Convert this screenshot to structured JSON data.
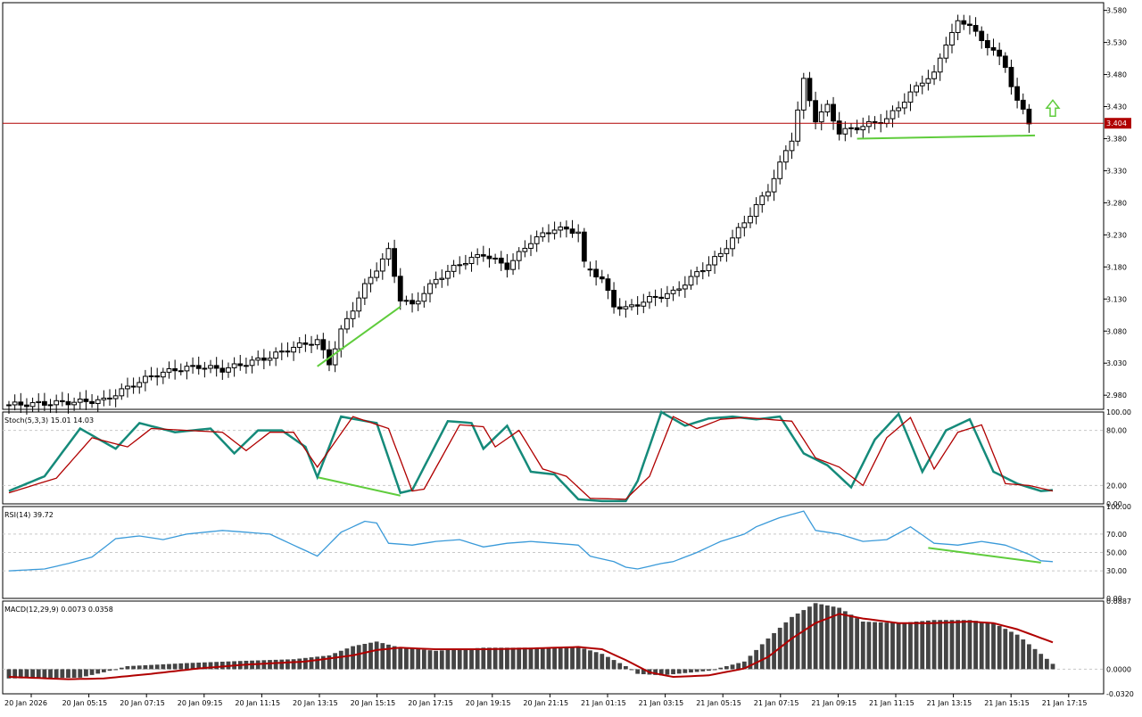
{
  "colors": {
    "bull_body": "#ffffff",
    "bear_body": "#000000",
    "price_line": "#b00000",
    "price_tag_bg": "#b00000",
    "divergence": "#5fcc3c",
    "arrow": "#5fcc3c",
    "stoch_main": "#158a7a",
    "stoch_signal": "#b00000",
    "rsi": "#3a9ad9",
    "macd_hist": "#444444",
    "macd_signal": "#b00000",
    "grid": "#c8c8c8"
  },
  "main": {
    "current_price": "3.404",
    "price_ticks": [
      "3.580",
      "3.530",
      "3.480",
      "3.430",
      "3.380",
      "3.330",
      "3.280",
      "3.230",
      "3.180",
      "3.130",
      "3.080",
      "3.030",
      "2.980"
    ],
    "ylim": [
      2.958,
      3.592
    ]
  },
  "stoch": {
    "title": "Stoch(5,3,3) 15.01 14.03",
    "ticks": [
      "100.00",
      "80.00",
      "20.00",
      "0.00"
    ],
    "ylim": [
      0,
      100
    ]
  },
  "rsi": {
    "title": "RSI(14) 39.72",
    "ticks": [
      "100.00",
      "70.00",
      "50.00",
      "30.00",
      "0.00"
    ],
    "ylim": [
      0,
      100
    ]
  },
  "macd": {
    "title": "MACD(12,29,9) 0.0073 0.0358",
    "ticks": [
      "0.0887",
      "0.0000",
      "-0.0320"
    ],
    "ylim": [
      -0.032,
      0.0887
    ]
  },
  "time_labels": [
    "20 Jan 2026",
    "20 Jan 05:15",
    "20 Jan 07:15",
    "20 Jan 09:15",
    "20 Jan 11:15",
    "20 Jan 13:15",
    "20 Jan 15:15",
    "20 Jan 17:15",
    "20 Jan 19:15",
    "20 Jan 21:15",
    "21 Jan 01:15",
    "21 Jan 03:15",
    "21 Jan 05:15",
    "21 Jan 07:15",
    "21 Jan 09:15",
    "21 Jan 11:15",
    "21 Jan 13:15",
    "21 Jan 15:15",
    "21 Jan 17:15"
  ],
  "chart_data": {
    "type": "candlestick",
    "x_labels": [
      "20 Jan 2026",
      "20 Jan 05:15",
      "20 Jan 07:15",
      "20 Jan 09:15",
      "20 Jan 11:15",
      "20 Jan 13:15",
      "20 Jan 15:15",
      "20 Jan 17:15",
      "20 Jan 19:15",
      "20 Jan 21:15",
      "21 Jan 01:15",
      "21 Jan 03:15",
      "21 Jan 05:15",
      "21 Jan 07:15",
      "21 Jan 09:15",
      "21 Jan 11:15",
      "21 Jan 13:15",
      "21 Jan 15:15",
      "21 Jan 17:15"
    ],
    "close_path": [
      [
        0,
        2.965
      ],
      [
        8,
        2.968
      ],
      [
        16,
        2.972
      ],
      [
        20,
        2.992
      ],
      [
        24,
        3.01
      ],
      [
        28,
        3.02
      ],
      [
        32,
        3.025
      ],
      [
        36,
        3.02
      ],
      [
        40,
        3.03
      ],
      [
        44,
        3.04
      ],
      [
        48,
        3.055
      ],
      [
        52,
        3.065
      ],
      [
        54,
        3.03
      ],
      [
        56,
        3.08
      ],
      [
        60,
        3.15
      ],
      [
        64,
        3.205
      ],
      [
        66,
        3.13
      ],
      [
        68,
        3.12
      ],
      [
        72,
        3.16
      ],
      [
        76,
        3.185
      ],
      [
        80,
        3.2
      ],
      [
        84,
        3.18
      ],
      [
        88,
        3.22
      ],
      [
        92,
        3.24
      ],
      [
        96,
        3.235
      ],
      [
        97,
        3.185
      ],
      [
        100,
        3.16
      ],
      [
        102,
        3.12
      ],
      [
        104,
        3.115
      ],
      [
        108,
        3.13
      ],
      [
        112,
        3.14
      ],
      [
        116,
        3.17
      ],
      [
        120,
        3.2
      ],
      [
        124,
        3.25
      ],
      [
        128,
        3.3
      ],
      [
        132,
        3.38
      ],
      [
        134,
        3.47
      ],
      [
        136,
        3.41
      ],
      [
        138,
        3.43
      ],
      [
        140,
        3.39
      ],
      [
        144,
        3.4
      ],
      [
        148,
        3.41
      ],
      [
        152,
        3.45
      ],
      [
        154,
        3.47
      ],
      [
        156,
        3.48
      ],
      [
        158,
        3.53
      ],
      [
        160,
        3.56
      ],
      [
        162,
        3.56
      ],
      [
        164,
        3.53
      ],
      [
        166,
        3.52
      ],
      [
        168,
        3.49
      ],
      [
        170,
        3.44
      ],
      [
        172,
        3.404
      ]
    ],
    "divergences": [
      {
        "pane": "main",
        "from": [
          52,
          3.025
        ],
        "to": [
          66,
          3.118
        ]
      },
      {
        "pane": "main",
        "from": [
          143,
          3.38
        ],
        "to": [
          173,
          3.385
        ]
      },
      {
        "pane": "stoch",
        "from": [
          52,
          29
        ],
        "to": [
          66,
          9
        ]
      },
      {
        "pane": "rsi",
        "from": [
          155,
          55
        ],
        "to": [
          174,
          39
        ]
      }
    ],
    "stoch_main": [
      [
        0,
        14
      ],
      [
        6,
        30
      ],
      [
        12,
        82
      ],
      [
        18,
        60
      ],
      [
        22,
        88
      ],
      [
        28,
        78
      ],
      [
        34,
        82
      ],
      [
        38,
        55
      ],
      [
        42,
        80
      ],
      [
        46,
        80
      ],
      [
        50,
        62
      ],
      [
        52,
        29
      ],
      [
        56,
        95
      ],
      [
        62,
        88
      ],
      [
        66,
        12
      ],
      [
        68,
        15
      ],
      [
        74,
        90
      ],
      [
        78,
        88
      ],
      [
        80,
        60
      ],
      [
        84,
        85
      ],
      [
        88,
        35
      ],
      [
        92,
        32
      ],
      [
        96,
        5
      ],
      [
        100,
        3
      ],
      [
        104,
        3
      ],
      [
        106,
        25
      ],
      [
        110,
        100
      ],
      [
        114,
        85
      ],
      [
        118,
        93
      ],
      [
        122,
        95
      ],
      [
        126,
        92
      ],
      [
        130,
        95
      ],
      [
        134,
        55
      ],
      [
        138,
        42
      ],
      [
        142,
        18
      ],
      [
        146,
        70
      ],
      [
        150,
        98
      ],
      [
        154,
        35
      ],
      [
        158,
        80
      ],
      [
        162,
        92
      ],
      [
        166,
        35
      ],
      [
        170,
        22
      ],
      [
        174,
        14
      ],
      [
        176,
        15
      ]
    ],
    "stoch_signal": [
      [
        0,
        12
      ],
      [
        8,
        28
      ],
      [
        14,
        72
      ],
      [
        20,
        62
      ],
      [
        24,
        82
      ],
      [
        30,
        80
      ],
      [
        36,
        78
      ],
      [
        40,
        58
      ],
      [
        44,
        78
      ],
      [
        48,
        78
      ],
      [
        52,
        40
      ],
      [
        58,
        95
      ],
      [
        64,
        82
      ],
      [
        68,
        14
      ],
      [
        70,
        16
      ],
      [
        76,
        86
      ],
      [
        80,
        84
      ],
      [
        82,
        62
      ],
      [
        86,
        80
      ],
      [
        90,
        38
      ],
      [
        94,
        30
      ],
      [
        98,
        6
      ],
      [
        104,
        5
      ],
      [
        108,
        30
      ],
      [
        112,
        95
      ],
      [
        116,
        82
      ],
      [
        120,
        92
      ],
      [
        124,
        94
      ],
      [
        128,
        92
      ],
      [
        132,
        90
      ],
      [
        136,
        50
      ],
      [
        140,
        40
      ],
      [
        144,
        20
      ],
      [
        148,
        72
      ],
      [
        152,
        94
      ],
      [
        156,
        38
      ],
      [
        160,
        78
      ],
      [
        164,
        86
      ],
      [
        168,
        22
      ],
      [
        172,
        20
      ],
      [
        176,
        14
      ]
    ],
    "rsi": [
      [
        0,
        30
      ],
      [
        6,
        32
      ],
      [
        10,
        38
      ],
      [
        14,
        45
      ],
      [
        16,
        55
      ],
      [
        18,
        65
      ],
      [
        22,
        68
      ],
      [
        26,
        64
      ],
      [
        30,
        70
      ],
      [
        36,
        74
      ],
      [
        40,
        72
      ],
      [
        44,
        70
      ],
      [
        52,
        46
      ],
      [
        56,
        72
      ],
      [
        60,
        84
      ],
      [
        62,
        82
      ],
      [
        64,
        60
      ],
      [
        68,
        58
      ],
      [
        72,
        62
      ],
      [
        76,
        64
      ],
      [
        80,
        56
      ],
      [
        84,
        60
      ],
      [
        88,
        62
      ],
      [
        92,
        60
      ],
      [
        96,
        58
      ],
      [
        98,
        46
      ],
      [
        102,
        40
      ],
      [
        104,
        34
      ],
      [
        106,
        32
      ],
      [
        110,
        38
      ],
      [
        112,
        40
      ],
      [
        116,
        50
      ],
      [
        120,
        62
      ],
      [
        124,
        70
      ],
      [
        126,
        78
      ],
      [
        130,
        88
      ],
      [
        134,
        95
      ],
      [
        136,
        74
      ],
      [
        140,
        70
      ],
      [
        144,
        62
      ],
      [
        148,
        64
      ],
      [
        152,
        78
      ],
      [
        156,
        60
      ],
      [
        160,
        58
      ],
      [
        164,
        62
      ],
      [
        168,
        58
      ],
      [
        172,
        48
      ],
      [
        174,
        41
      ],
      [
        176,
        40
      ]
    ],
    "macd_hist": [
      [
        0,
        -0.012
      ],
      [
        12,
        -0.011
      ],
      [
        16,
        -0.004
      ],
      [
        20,
        0.004
      ],
      [
        30,
        0.008
      ],
      [
        40,
        0.011
      ],
      [
        48,
        0.013
      ],
      [
        54,
        0.018
      ],
      [
        58,
        0.03
      ],
      [
        62,
        0.036
      ],
      [
        66,
        0.028
      ],
      [
        72,
        0.024
      ],
      [
        80,
        0.028
      ],
      [
        88,
        0.028
      ],
      [
        96,
        0.029
      ],
      [
        100,
        0.02
      ],
      [
        104,
        0.004
      ],
      [
        106,
        -0.006
      ],
      [
        110,
        -0.008
      ],
      [
        118,
        -0.002
      ],
      [
        124,
        0.01
      ],
      [
        128,
        0.04
      ],
      [
        132,
        0.068
      ],
      [
        136,
        0.086
      ],
      [
        140,
        0.08
      ],
      [
        144,
        0.062
      ],
      [
        150,
        0.06
      ],
      [
        156,
        0.064
      ],
      [
        162,
        0.064
      ],
      [
        166,
        0.06
      ],
      [
        170,
        0.045
      ],
      [
        174,
        0.02
      ],
      [
        176,
        0.007
      ]
    ],
    "macd_signal": [
      [
        0,
        -0.01
      ],
      [
        10,
        -0.013
      ],
      [
        16,
        -0.012
      ],
      [
        24,
        -0.006
      ],
      [
        32,
        0.001
      ],
      [
        40,
        0.006
      ],
      [
        50,
        0.01
      ],
      [
        58,
        0.018
      ],
      [
        62,
        0.025
      ],
      [
        66,
        0.028
      ],
      [
        72,
        0.026
      ],
      [
        80,
        0.026
      ],
      [
        88,
        0.027
      ],
      [
        96,
        0.029
      ],
      [
        100,
        0.026
      ],
      [
        104,
        0.012
      ],
      [
        108,
        -0.004
      ],
      [
        112,
        -0.01
      ],
      [
        118,
        -0.008
      ],
      [
        124,
        0.001
      ],
      [
        128,
        0.016
      ],
      [
        132,
        0.04
      ],
      [
        136,
        0.06
      ],
      [
        140,
        0.072
      ],
      [
        144,
        0.066
      ],
      [
        150,
        0.06
      ],
      [
        156,
        0.06
      ],
      [
        162,
        0.062
      ],
      [
        166,
        0.06
      ],
      [
        170,
        0.052
      ],
      [
        176,
        0.035
      ]
    ]
  }
}
